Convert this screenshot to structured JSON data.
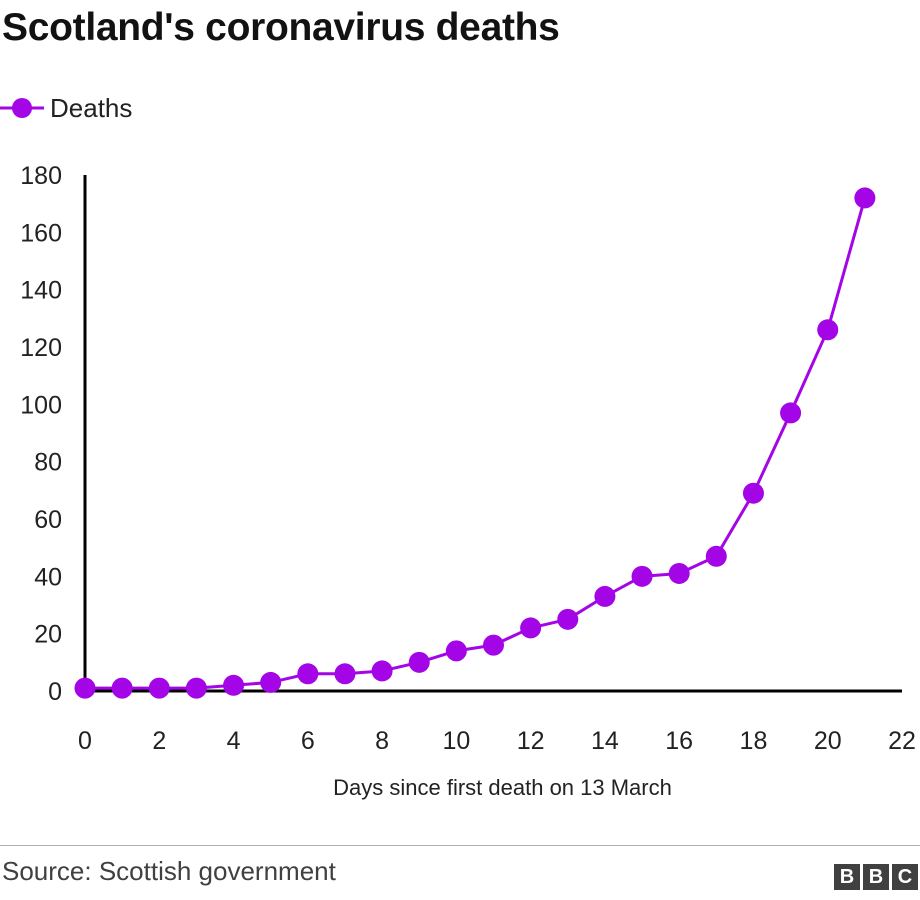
{
  "chart_data": {
    "type": "line",
    "title": "Scotland's coronavirus deaths",
    "xlabel": "Days since first death on 13 March",
    "ylabel": "",
    "xlim": [
      0,
      22
    ],
    "ylim": [
      0,
      180
    ],
    "xticks": [
      0,
      2,
      4,
      6,
      8,
      10,
      12,
      14,
      16,
      18,
      20,
      22
    ],
    "yticks": [
      0,
      20,
      40,
      60,
      80,
      100,
      120,
      140,
      160,
      180
    ],
    "grid": false,
    "legend_position": "top-left",
    "series": [
      {
        "name": "Deaths",
        "color": "#a305e6",
        "x": [
          0,
          1,
          2,
          3,
          4,
          5,
          6,
          7,
          8,
          9,
          10,
          11,
          12,
          13,
          14,
          15,
          16,
          17,
          18,
          19,
          20,
          21
        ],
        "y": [
          1,
          1,
          1,
          1,
          2,
          3,
          6,
          6,
          7,
          10,
          14,
          16,
          22,
          25,
          33,
          40,
          41,
          47,
          69,
          97,
          126,
          172
        ]
      }
    ]
  },
  "footer": {
    "source": "Source: Scottish government",
    "logo_letters": [
      "B",
      "B",
      "C"
    ]
  }
}
